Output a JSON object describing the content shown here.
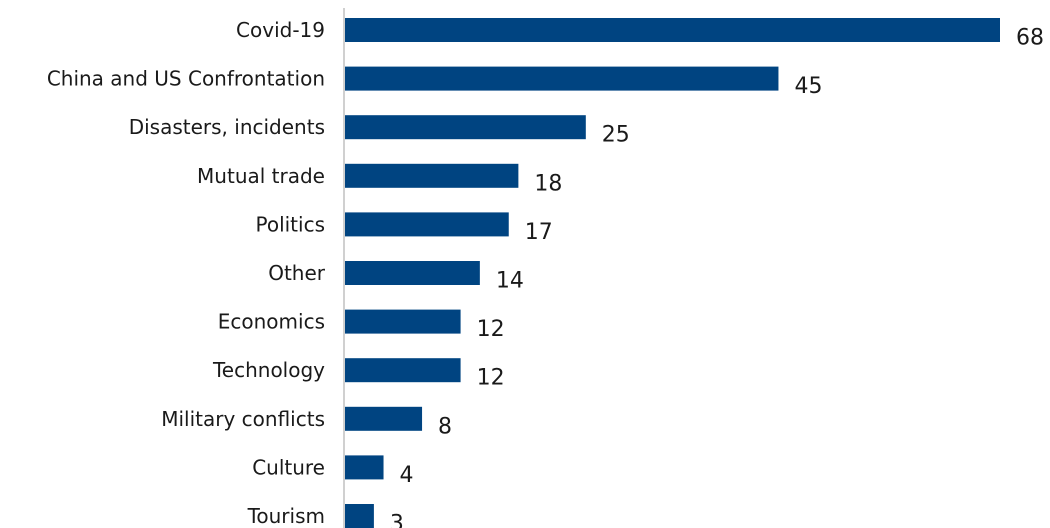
{
  "chart_data": {
    "type": "bar",
    "orientation": "horizontal",
    "categories": [
      "Covid-19",
      "China and US Confrontation",
      "Disasters, incidents",
      "Mutual trade",
      "Politics",
      "Other",
      "Economics",
      "Technology",
      "Military conflicts",
      "Culture",
      "Tourism"
    ],
    "values": [
      68,
      45,
      25,
      18,
      17,
      14,
      12,
      12,
      8,
      4,
      3
    ],
    "xlim": [
      0,
      68
    ],
    "grid": false,
    "legend": "none",
    "bar_color": "#004481",
    "axis_color": "#d0d0d0"
  }
}
